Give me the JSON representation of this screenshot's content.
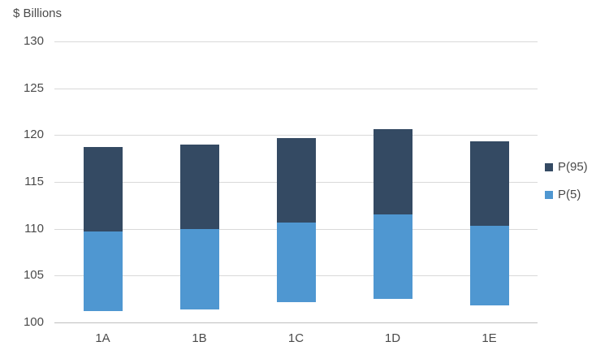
{
  "title": "$ Billions",
  "chart_data": {
    "type": "bar",
    "subtype": "stacked-floating-range",
    "title": "$ Billions",
    "categories": [
      "1A",
      "1B",
      "1C",
      "1D",
      "1E"
    ],
    "series": [
      {
        "name": "P(95)",
        "color": "#344a63",
        "ranges": [
          [
            109.7,
            118.7
          ],
          [
            110.0,
            119.0
          ],
          [
            110.7,
            119.7
          ],
          [
            111.5,
            120.6
          ],
          [
            110.3,
            119.3
          ]
        ]
      },
      {
        "name": "P(5)",
        "color": "#4f97d1",
        "ranges": [
          [
            101.2,
            109.7
          ],
          [
            101.4,
            110.0
          ],
          [
            102.2,
            110.7
          ],
          [
            102.5,
            111.5
          ],
          [
            101.8,
            110.3
          ]
        ]
      }
    ],
    "xlabel": "",
    "ylabel": "$ Billions",
    "ylim": [
      100,
      130
    ],
    "yticks": [
      100,
      105,
      110,
      115,
      120,
      125,
      130
    ],
    "grid": true,
    "legend_position": "right"
  },
  "colors": {
    "background": "#ffffff",
    "gridline": "#d9d9d9",
    "axis_line": "#bfbfbf",
    "text": "#4a4a4a"
  }
}
